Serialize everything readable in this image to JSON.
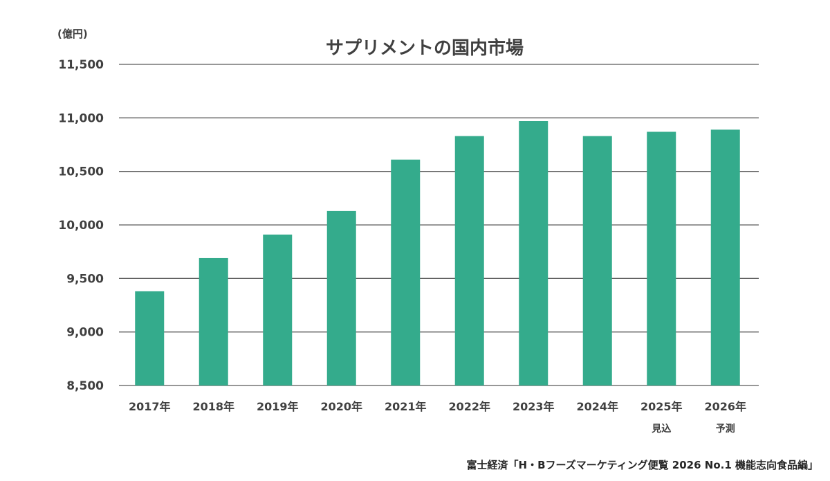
{
  "chart_data": {
    "type": "bar",
    "title": "サプリメントの国内市場",
    "ylabel": "(億円)",
    "xlabel": "",
    "categories": [
      "2017年",
      "2018年",
      "2019年",
      "2020年",
      "2021年",
      "2022年",
      "2023年",
      "2024年",
      "2025年",
      "2026年"
    ],
    "category_notes": [
      "",
      "",
      "",
      "",
      "",
      "",
      "",
      "",
      "見込",
      "予測"
    ],
    "values": [
      9380,
      9690,
      9910,
      10130,
      10610,
      10830,
      10970,
      10830,
      10870,
      10890
    ],
    "ylim": [
      8500,
      11500
    ],
    "yticks": [
      8500,
      9000,
      9500,
      10000,
      10500,
      11000,
      11500
    ],
    "ytick_labels": [
      "8,500",
      "9,000",
      "9,500",
      "10,000",
      "10,500",
      "11,000",
      "11,500"
    ],
    "grid": true,
    "bar_color": "#34ab8c",
    "source": "富士経済「H・Bフーズマーケティング便覧 2026 No.1 機能志向食品編」"
  }
}
